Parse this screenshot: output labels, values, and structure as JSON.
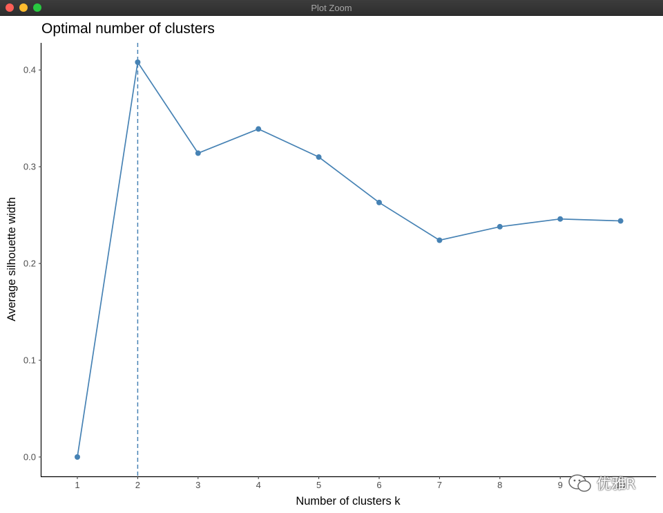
{
  "window": {
    "title": "Plot Zoom"
  },
  "watermark": {
    "text": "优雅R"
  },
  "colors": {
    "series": "#4682b4",
    "axis": "#000000",
    "tick_text": "#4d4d4d"
  },
  "chart_data": {
    "type": "line",
    "title": "Optimal number of clusters",
    "xlabel": "Number of clusters k",
    "ylabel": "Average silhouette width",
    "categories": [
      "1",
      "2",
      "3",
      "4",
      "5",
      "6",
      "7",
      "8",
      "9",
      "10"
    ],
    "values": [
      0.0,
      0.408,
      0.314,
      0.339,
      0.31,
      0.263,
      0.224,
      0.238,
      0.246,
      0.244
    ],
    "yticks": [
      "0.0",
      "0.1",
      "0.2",
      "0.3",
      "0.4"
    ],
    "ylim": [
      -0.02,
      0.428
    ],
    "optimal_k": 2,
    "grid": false,
    "markers": true
  }
}
